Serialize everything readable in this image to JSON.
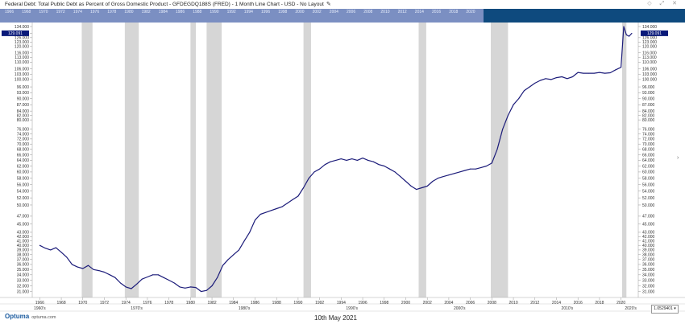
{
  "header": {
    "title": "Federal Debt: Total Public Debt as Percent of Gross Domestic Product - GFDEGDQ188S (FRED) - 1 Month Line Chart - USD - No Layout",
    "edit_icon": "pencil-icon",
    "window_icons": "◇ ⤢ ✕"
  },
  "navigator": {
    "years": [
      "1966",
      "1968",
      "1970",
      "1972",
      "1974",
      "1976",
      "1978",
      "1980",
      "1982",
      "1984",
      "1986",
      "1988",
      "1990",
      "1992",
      "1994",
      "1996",
      "1998",
      "2000",
      "2002",
      "2004",
      "2006",
      "2008",
      "2010",
      "2012",
      "2014",
      "2016",
      "2018",
      "2020"
    ]
  },
  "footer": {
    "logo": "Optuma",
    "logo_sub": "optuma.com",
    "date": "10th May 2021",
    "scale_badge": "1.0529401 ▾"
  },
  "colors": {
    "line": "#1c1c7a",
    "recession": "#d6d6d6",
    "nav": "#0e4a7e",
    "nav_selection": "#7b8fc2",
    "badge": "#0a1a7a"
  },
  "chart_data": {
    "type": "line",
    "title": "Federal Debt: Total Public Debt as Percent of Gross Domestic Product - GFDEGDQ188S (FRED) - 1 Month Line Chart - USD - No Layout",
    "y_scale": "log",
    "ylim": [
      30,
      137
    ],
    "xlim": [
      1965.3,
      2021.6
    ],
    "grid": false,
    "y_ticks_left": [
      134,
      129,
      126,
      123,
      120,
      116,
      113,
      110,
      106,
      103,
      100,
      96,
      93,
      90,
      87,
      84,
      82,
      80,
      76,
      74,
      72,
      70,
      68,
      66,
      64,
      62,
      60,
      58,
      56,
      54,
      52,
      50,
      47,
      45,
      43,
      42,
      41,
      40,
      39,
      38,
      37,
      36,
      35,
      34,
      33,
      32,
      31
    ],
    "y_ticks_right": [
      134,
      126,
      123,
      120,
      116,
      113,
      110,
      106,
      103,
      100,
      96,
      93,
      90,
      87,
      84,
      82,
      80,
      76,
      74,
      72,
      70,
      68,
      66,
      64,
      62,
      60,
      58,
      56,
      54,
      52,
      50,
      47,
      45,
      43,
      42,
      41,
      40,
      39,
      38,
      37,
      36,
      35,
      34,
      33,
      32,
      31
    ],
    "x_ticks": [
      1966,
      1968,
      1970,
      1972,
      1974,
      1976,
      1978,
      1980,
      1982,
      1984,
      1986,
      1988,
      1990,
      1992,
      1994,
      1996,
      1998,
      2000,
      2002,
      2004,
      2006,
      2008,
      2010,
      2012,
      2014,
      2016,
      2018,
      2020
    ],
    "decade_labels": [
      {
        "label": "1960's",
        "x": 1966
      },
      {
        "label": "1970's",
        "x": 1975
      },
      {
        "label": "1980's",
        "x": 1985
      },
      {
        "label": "1990's",
        "x": 1995
      },
      {
        "label": "2000's",
        "x": 2005
      },
      {
        "label": "2010's",
        "x": 2015
      },
      {
        "label": "2020's",
        "x": 2020.9
      }
    ],
    "recessions": [
      [
        1969.9,
        1970.9
      ],
      [
        1973.9,
        1975.2
      ],
      [
        1980.0,
        1980.5
      ],
      [
        1981.5,
        1982.9
      ],
      [
        1990.5,
        1991.2
      ],
      [
        2001.2,
        2001.9
      ],
      [
        2007.9,
        2009.5
      ],
      [
        2020.1,
        2020.5
      ]
    ],
    "last_value": "129.091",
    "series": [
      {
        "x": [
          1966.0,
          1966.5,
          1967.0,
          1967.5,
          1968.0,
          1968.5,
          1969.0,
          1969.5,
          1970.0,
          1970.5,
          1971.0,
          1971.5,
          1972.0,
          1972.5,
          1973.0,
          1973.5,
          1974.0,
          1974.5,
          1975.0,
          1975.5,
          1976.0,
          1976.5,
          1977.0,
          1977.5,
          1978.0,
          1978.5,
          1979.0,
          1979.5,
          1980.0,
          1980.5,
          1981.0,
          1981.5,
          1982.0,
          1982.5,
          1983.0,
          1983.5,
          1984.0,
          1984.5,
          1985.0,
          1985.5,
          1986.0,
          1986.5,
          1987.0,
          1987.5,
          1988.0,
          1988.5,
          1989.0,
          1989.5,
          1990.0,
          1990.5,
          1991.0,
          1991.5,
          1992.0,
          1992.5,
          1993.0,
          1993.5,
          1994.0,
          1994.5,
          1995.0,
          1995.5,
          1996.0,
          1996.5,
          1997.0,
          1997.5,
          1998.0,
          1998.5,
          1999.0,
          1999.5,
          2000.0,
          2000.5,
          2001.0,
          2001.5,
          2002.0,
          2002.5,
          2003.0,
          2003.5,
          2004.0,
          2004.5,
          2005.0,
          2005.5,
          2006.0,
          2006.5,
          2007.0,
          2007.5,
          2008.0,
          2008.5,
          2009.0,
          2009.5,
          2010.0,
          2010.5,
          2011.0,
          2011.5,
          2012.0,
          2012.5,
          2013.0,
          2013.5,
          2014.0,
          2014.5,
          2015.0,
          2015.5,
          2016.0,
          2016.5,
          2017.0,
          2017.5,
          2018.0,
          2018.5,
          2019.0,
          2019.5,
          2020.0,
          2020.25,
          2020.5,
          2020.75,
          2021.0
        ],
        "values": [
          40.0,
          39.4,
          39.0,
          39.5,
          38.5,
          37.5,
          36.0,
          35.5,
          35.2,
          35.8,
          35.0,
          34.8,
          34.5,
          34.0,
          33.5,
          32.5,
          31.8,
          31.5,
          32.3,
          33.2,
          33.6,
          34.0,
          34.0,
          33.5,
          33.0,
          32.5,
          31.8,
          31.6,
          31.8,
          31.7,
          31.0,
          31.2,
          32.0,
          33.5,
          35.8,
          37.0,
          38.0,
          39.0,
          41.0,
          43.0,
          46.0,
          47.5,
          48.0,
          48.5,
          49.0,
          49.5,
          50.5,
          51.5,
          52.5,
          55.0,
          58.0,
          60.0,
          61.0,
          62.5,
          63.5,
          64.0,
          64.5,
          64.0,
          64.5,
          64.0,
          64.8,
          64.0,
          63.5,
          62.5,
          62.0,
          61.0,
          60.0,
          58.5,
          57.0,
          55.5,
          54.5,
          55.0,
          55.5,
          57.0,
          58.0,
          58.5,
          59.0,
          59.5,
          60.0,
          60.5,
          61.0,
          61.0,
          61.5,
          62.0,
          63.0,
          68.0,
          76.0,
          82.0,
          87.0,
          90.0,
          94.0,
          96.0,
          98.0,
          99.5,
          100.5,
          100.0,
          101.0,
          101.5,
          100.5,
          101.5,
          104.0,
          103.5,
          103.5,
          103.5,
          104.0,
          103.5,
          103.8,
          105.5,
          107.0,
          134.0,
          128.0,
          127.0,
          129.1
        ]
      }
    ]
  }
}
